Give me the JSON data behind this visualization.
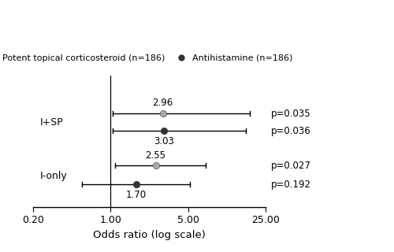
{
  "legend_labels": [
    "Potent topical corticosteroid (n=186)",
    "Antihistamine (n=186)"
  ],
  "legend_colors": [
    "#aaaaaa",
    "#333333"
  ],
  "series": [
    {
      "color": "#aaaaaa",
      "group": "I+SP",
      "y": 3.2,
      "or": 2.96,
      "ci_low": 1.05,
      "ci_high": 18.0,
      "label_above": true,
      "value_label": "2.96",
      "pvalue": "p=0.035"
    },
    {
      "color": "#333333",
      "group": "I+SP",
      "y": 2.7,
      "or": 3.03,
      "ci_low": 1.05,
      "ci_high": 16.5,
      "label_above": false,
      "value_label": "3.03",
      "pvalue": "p=0.036"
    },
    {
      "color": "#aaaaaa",
      "group": "I-only",
      "y": 1.7,
      "or": 2.55,
      "ci_low": 1.1,
      "ci_high": 7.2,
      "label_above": true,
      "value_label": "2.55",
      "pvalue": "p=0.027"
    },
    {
      "color": "#333333",
      "group": "I-only",
      "y": 1.15,
      "or": 1.7,
      "ci_low": 0.55,
      "ci_high": 5.2,
      "label_above": false,
      "value_label": "1.70",
      "pvalue": "p=0.192"
    }
  ],
  "xlim": [
    0.2,
    25.0
  ],
  "xticks": [
    0.2,
    1.0,
    5.0,
    25.0
  ],
  "xtick_labels": [
    "0.20",
    "1.00",
    "5.00",
    "25.00"
  ],
  "xlabel": "Odds ratio (log scale)",
  "group_labels": [
    {
      "text": "I+SP",
      "y": 2.95
    },
    {
      "text": "I-only",
      "y": 1.4
    }
  ],
  "ylim": [
    0.5,
    4.3
  ],
  "vline_x": 1.0,
  "background_color": "#ffffff"
}
